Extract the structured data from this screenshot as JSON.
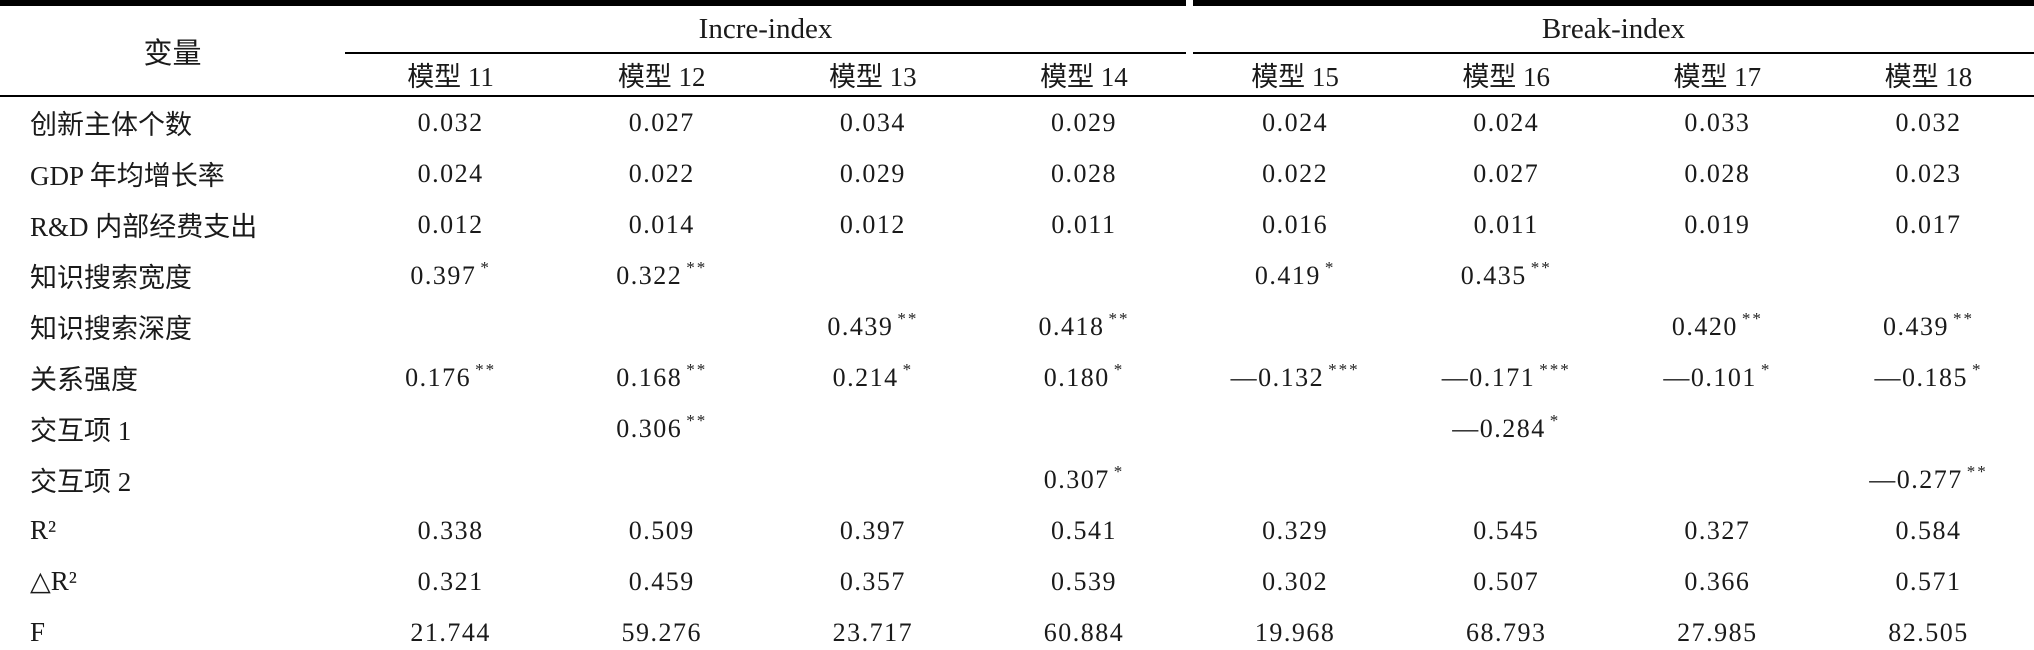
{
  "page": {
    "background": "#ffffff",
    "text_color": "#1a1a1a",
    "rule_color": "#000000"
  },
  "table": {
    "corner_header": "变量",
    "groups": [
      {
        "label": "Incre-index"
      },
      {
        "label": "Break-index"
      }
    ],
    "model_headers": [
      "模型 11",
      "模型 12",
      "模型 13",
      "模型 14",
      "模型 15",
      "模型 16",
      "模型 17",
      "模型 18"
    ],
    "rows": [
      {
        "label": "创新主体个数",
        "cells": [
          {
            "v": "0.032"
          },
          {
            "v": "0.027"
          },
          {
            "v": "0.034"
          },
          {
            "v": "0.029"
          },
          {
            "v": "0.024"
          },
          {
            "v": "0.024"
          },
          {
            "v": "0.033"
          },
          {
            "v": "0.032"
          }
        ]
      },
      {
        "label": "GDP 年均增长率",
        "cells": [
          {
            "v": "0.024"
          },
          {
            "v": "0.022"
          },
          {
            "v": "0.029"
          },
          {
            "v": "0.028"
          },
          {
            "v": "0.022"
          },
          {
            "v": "0.027"
          },
          {
            "v": "0.028"
          },
          {
            "v": "0.023"
          }
        ]
      },
      {
        "label": "R&D 内部经费支出",
        "cells": [
          {
            "v": "0.012"
          },
          {
            "v": "0.014"
          },
          {
            "v": "0.012"
          },
          {
            "v": "0.011"
          },
          {
            "v": "0.016"
          },
          {
            "v": "0.011"
          },
          {
            "v": "0.019"
          },
          {
            "v": "0.017"
          }
        ]
      },
      {
        "label": "知识搜索宽度",
        "cells": [
          {
            "v": "0.397",
            "s": "*"
          },
          {
            "v": "0.322",
            "s": "**"
          },
          null,
          null,
          {
            "v": "0.419",
            "s": "*"
          },
          {
            "v": "0.435",
            "s": "**"
          },
          null,
          null
        ]
      },
      {
        "label": "知识搜索深度",
        "cells": [
          null,
          null,
          {
            "v": "0.439",
            "s": "**"
          },
          {
            "v": "0.418",
            "s": "**"
          },
          null,
          null,
          {
            "v": "0.420",
            "s": "**"
          },
          {
            "v": "0.439",
            "s": "**"
          }
        ]
      },
      {
        "label": "关系强度",
        "cells": [
          {
            "v": "0.176",
            "s": "**"
          },
          {
            "v": "0.168",
            "s": "**"
          },
          {
            "v": "0.214",
            "s": "*"
          },
          {
            "v": "0.180",
            "s": "*"
          },
          {
            "v": "—0.132",
            "s": "***"
          },
          {
            "v": "—0.171",
            "s": "***"
          },
          {
            "v": "—0.101",
            "s": "*"
          },
          {
            "v": "—0.185",
            "s": "*"
          }
        ]
      },
      {
        "label": "交互项 1",
        "cells": [
          null,
          {
            "v": "0.306",
            "s": "**"
          },
          null,
          null,
          null,
          {
            "v": "—0.284",
            "s": "*"
          },
          null,
          null
        ]
      },
      {
        "label": "交互项 2",
        "cells": [
          null,
          null,
          null,
          {
            "v": "0.307",
            "s": "*"
          },
          null,
          null,
          null,
          {
            "v": "—0.277",
            "s": "**"
          }
        ]
      },
      {
        "label": "R²",
        "cells": [
          {
            "v": "0.338"
          },
          {
            "v": "0.509"
          },
          {
            "v": "0.397"
          },
          {
            "v": "0.541"
          },
          {
            "v": "0.329"
          },
          {
            "v": "0.545"
          },
          {
            "v": "0.327"
          },
          {
            "v": "0.584"
          }
        ]
      },
      {
        "label": "△R²",
        "cells": [
          {
            "v": "0.321"
          },
          {
            "v": "0.459"
          },
          {
            "v": "0.357"
          },
          {
            "v": "0.539"
          },
          {
            "v": "0.302"
          },
          {
            "v": "0.507"
          },
          {
            "v": "0.366"
          },
          {
            "v": "0.571"
          }
        ]
      },
      {
        "label": "F",
        "cells": [
          {
            "v": "21.744"
          },
          {
            "v": "59.276"
          },
          {
            "v": "23.717"
          },
          {
            "v": "60.884"
          },
          {
            "v": "19.968"
          },
          {
            "v": "68.793"
          },
          {
            "v": "27.985"
          },
          {
            "v": "82.505"
          }
        ]
      }
    ]
  }
}
